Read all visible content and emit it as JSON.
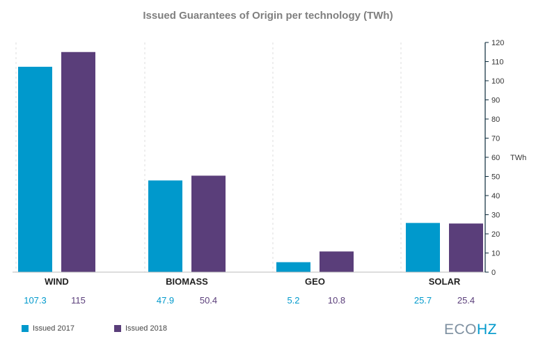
{
  "chart_data": {
    "type": "bar",
    "title": "Issued Guarantees of Origin per technology (TWh)",
    "categories": [
      "WIND",
      "BIOMASS",
      "GEO",
      "SOLAR"
    ],
    "series": [
      {
        "name": "Issued 2017",
        "color": "#0099cc",
        "values": [
          107.3,
          47.9,
          5.2,
          25.7
        ],
        "value_labels": [
          "107.3",
          "47.9",
          "5.2",
          "25.7"
        ]
      },
      {
        "name": "Issued 2018",
        "color": "#5a3e7a",
        "values": [
          115,
          50.4,
          10.8,
          25.4
        ],
        "value_labels": [
          "115",
          "50.4",
          "10.8",
          "25.4"
        ]
      }
    ],
    "ylim": [
      0,
      120
    ],
    "yticks": [
      "0",
      "10",
      "20",
      "30",
      "40",
      "50",
      "60",
      "70",
      "80",
      "90",
      "100",
      "110",
      "120"
    ],
    "yunit": "TWh",
    "y_axis_side": "right",
    "grid": "vertical-dashed",
    "legend_position": "bottom-left"
  },
  "brand": {
    "part1": "ECO",
    "part2": "HZ"
  }
}
